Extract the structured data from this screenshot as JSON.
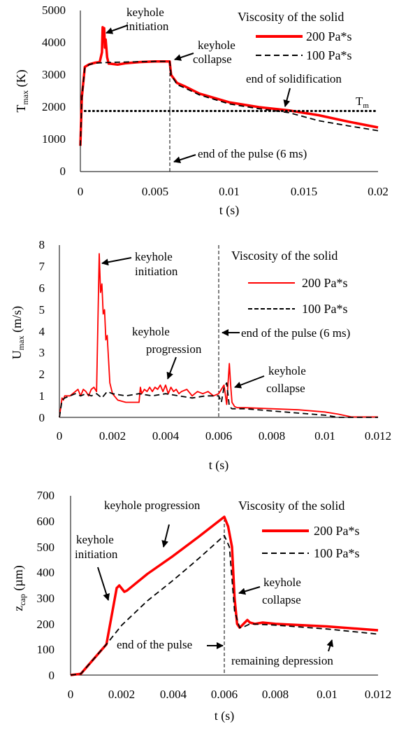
{
  "figure": {
    "background": "#ffffff"
  },
  "chart_data": [
    {
      "type": "line",
      "xlabel": "t (s)",
      "ylabel_main": "T",
      "ylabel_sub": "max",
      "ylabel_unit": " (K)",
      "xlim": [
        0,
        0.02
      ],
      "ylim": [
        0,
        5000
      ],
      "xticks": [
        "0",
        "0.005",
        "0.01",
        "0.015",
        "0.02"
      ],
      "yticks": [
        "0",
        "1000",
        "2000",
        "3000",
        "4000",
        "5000"
      ],
      "legend_title": "Viscosity of the solid",
      "series": [
        {
          "name": "200 Pa*s",
          "color": "#ff0000",
          "style": "solid-thick",
          "x": [
            0,
            0.0001,
            0.0003,
            0.0006,
            0.001,
            0.0013,
            0.00145,
            0.0015,
            0.00155,
            0.0016,
            0.00165,
            0.0017,
            0.0018,
            0.0019,
            0.002,
            0.0025,
            0.003,
            0.004,
            0.005,
            0.006,
            0.0061,
            0.0065,
            0.007,
            0.008,
            0.01,
            0.012,
            0.014,
            0.016,
            0.018,
            0.02
          ],
          "y": [
            800,
            2300,
            3250,
            3330,
            3380,
            3400,
            3700,
            4480,
            4050,
            4450,
            3850,
            4100,
            3550,
            3350,
            3350,
            3320,
            3360,
            3400,
            3420,
            3420,
            3000,
            2750,
            2650,
            2420,
            2150,
            2000,
            1900,
            1750,
            1550,
            1370
          ]
        },
        {
          "name": "100 Pa*s",
          "color": "#000000",
          "style": "dashed",
          "x": [
            0,
            0.0001,
            0.0003,
            0.0006,
            0.001,
            0.002,
            0.003,
            0.004,
            0.005,
            0.006,
            0.0061,
            0.0065,
            0.007,
            0.008,
            0.01,
            0.012,
            0.014,
            0.016,
            0.018,
            0.02
          ],
          "y": [
            800,
            2300,
            3230,
            3320,
            3370,
            3390,
            3400,
            3410,
            3420,
            3420,
            3000,
            2700,
            2600,
            2380,
            2100,
            1950,
            1830,
            1580,
            1420,
            1270
          ]
        },
        {
          "name": "Tm",
          "color": "#000000",
          "style": "dotted",
          "x": [
            0.0003,
            0.02
          ],
          "y": [
            1880,
            1880
          ]
        }
      ],
      "tm_label": "T",
      "tm_sub": "m",
      "annotations": {
        "initiation_1": "keyhole",
        "initiation_2": "initiation",
        "collapse_1": "keyhole",
        "collapse_2": "collapse",
        "solidification": "end of solidification",
        "pulse": "end of the pulse (6 ms)"
      }
    },
    {
      "type": "line",
      "xlabel": "t (s)",
      "ylabel_main": "U",
      "ylabel_sub": "max",
      "ylabel_unit": " (m/s)",
      "xlim": [
        0,
        0.012
      ],
      "ylim": [
        0,
        8
      ],
      "xticks": [
        "0",
        "0.002",
        "0.004",
        "0.006",
        "0.008",
        "0.01",
        "0.012"
      ],
      "yticks": [
        "0",
        "1",
        "2",
        "3",
        "4",
        "5",
        "6",
        "7",
        "8"
      ],
      "legend_title": "Viscosity of the solid",
      "series": [
        {
          "name": "200 Pa*s",
          "color": "#ff0000",
          "style": "solid-thin",
          "x": [
            0,
            0.0001,
            0.00015,
            0.0002,
            0.0004,
            0.0005,
            0.0006,
            0.0007,
            0.0008,
            0.0009,
            0.001,
            0.0011,
            0.0012,
            0.0013,
            0.0014,
            0.0015,
            0.00155,
            0.0016,
            0.00165,
            0.0017,
            0.00175,
            0.0018,
            0.0019,
            0.002,
            0.0022,
            0.0025,
            0.003,
            0.00305,
            0.0031,
            0.0032,
            0.0033,
            0.0034,
            0.0035,
            0.0036,
            0.0037,
            0.0038,
            0.0039,
            0.004,
            0.0041,
            0.0042,
            0.0043,
            0.0044,
            0.0045,
            0.0046,
            0.0048,
            0.005,
            0.0052,
            0.0054,
            0.0056,
            0.0058,
            0.006,
            0.0061,
            0.0062,
            0.0063,
            0.0064,
            0.00645,
            0.0065,
            0.0066,
            0.0067,
            0.007,
            0.008,
            0.009,
            0.01,
            0.0105,
            0.011,
            0.012
          ],
          "y": [
            0,
            0.9,
            0.8,
            1.0,
            1.0,
            1.1,
            1.2,
            1.3,
            1.0,
            1.3,
            1.2,
            1.0,
            1.3,
            1.4,
            1.2,
            7.6,
            5.8,
            6.2,
            4.8,
            5.0,
            3.6,
            3.8,
            1.6,
            1.1,
            0.8,
            0.7,
            0.7,
            1.4,
            1.1,
            1.3,
            1.2,
            1.4,
            1.2,
            1.4,
            1.3,
            1.5,
            1.2,
            1.5,
            1.1,
            1.4,
            1.2,
            1.3,
            1.1,
            1.2,
            1.3,
            1.0,
            1.2,
            1.1,
            1.2,
            1.0,
            1.1,
            1.3,
            1.5,
            0.6,
            2.5,
            1.5,
            0.7,
            0.5,
            0.45,
            0.45,
            0.4,
            0.35,
            0.25,
            0.15,
            0.02,
            0.02
          ]
        },
        {
          "name": "100 Pa*s",
          "color": "#000000",
          "style": "dashed",
          "x": [
            0,
            0.0001,
            0.0002,
            0.0004,
            0.0006,
            0.0008,
            0.001,
            0.0012,
            0.0014,
            0.0016,
            0.0018,
            0.002,
            0.0025,
            0.003,
            0.0035,
            0.004,
            0.0045,
            0.005,
            0.0055,
            0.006,
            0.0061,
            0.0062,
            0.0063,
            0.0064,
            0.0065,
            0.0066,
            0.007,
            0.008,
            0.009,
            0.01,
            0.0105,
            0.012
          ],
          "y": [
            0,
            0.8,
            0.9,
            1.0,
            1.1,
            1.0,
            1.1,
            1.0,
            1.1,
            0.9,
            1.2,
            1.1,
            1.0,
            1.1,
            1.0,
            1.1,
            1.0,
            0.9,
            1.0,
            1.0,
            0.7,
            1.4,
            1.6,
            0.5,
            0.4,
            0.4,
            0.4,
            0.3,
            0.2,
            0.1,
            0.0,
            0.0
          ]
        }
      ],
      "pulse_x": 0.006,
      "annotations": {
        "initiation_1": "keyhole",
        "initiation_2": "initiation",
        "progression_1": "keyhole",
        "progression_2": "progression",
        "pulse": "end of the pulse (6 ms)",
        "collapse_1": "keyhole",
        "collapse_2": "collapse"
      }
    },
    {
      "type": "line",
      "xlabel": "t (s)",
      "ylabel_main": "z",
      "ylabel_sub": "cap",
      "ylabel_unit": " (µm)",
      "xlim": [
        0,
        0.012
      ],
      "ylim": [
        0,
        700
      ],
      "xticks": [
        "0",
        "0.002",
        "0.004",
        "0.006",
        "0.008",
        "0.01",
        "0.012"
      ],
      "yticks": [
        "0",
        "100",
        "200",
        "300",
        "400",
        "500",
        "600",
        "700"
      ],
      "legend_title": "Viscosity of the solid",
      "series": [
        {
          "name": "200 Pa*s",
          "color": "#ff0000",
          "style": "solid-thick",
          "x": [
            0,
            0.0004,
            0.0014,
            0.0018,
            0.0019,
            0.0021,
            0.0022,
            0.003,
            0.004,
            0.005,
            0.006,
            0.00615,
            0.0063,
            0.0064,
            0.0065,
            0.0066,
            0.0067,
            0.0069,
            0.007,
            0.0072,
            0.0075,
            0.008,
            0.01,
            0.012
          ],
          "y": [
            0,
            5,
            120,
            340,
            350,
            325,
            330,
            395,
            465,
            540,
            618,
            580,
            500,
            300,
            200,
            185,
            195,
            215,
            205,
            200,
            205,
            200,
            190,
            175
          ]
        },
        {
          "name": "100 Pa*s",
          "color": "#000000",
          "style": "dashed",
          "x": [
            0,
            0.0004,
            0.0014,
            0.002,
            0.003,
            0.004,
            0.005,
            0.006,
            0.0062,
            0.0064,
            0.0066,
            0.0068,
            0.007,
            0.008,
            0.01,
            0.012
          ],
          "y": [
            0,
            5,
            120,
            195,
            290,
            370,
            455,
            545,
            500,
            250,
            185,
            190,
            200,
            195,
            180,
            160
          ]
        }
      ],
      "pulse_x": 0.006,
      "annotations": {
        "initiation_1": "keyhole",
        "initiation_2": "initiation",
        "progression": "keyhole  progression",
        "collapse_1": "keyhole",
        "collapse_2": "collapse",
        "pulse": "end of the pulse",
        "depression": "remaining depression"
      }
    }
  ]
}
